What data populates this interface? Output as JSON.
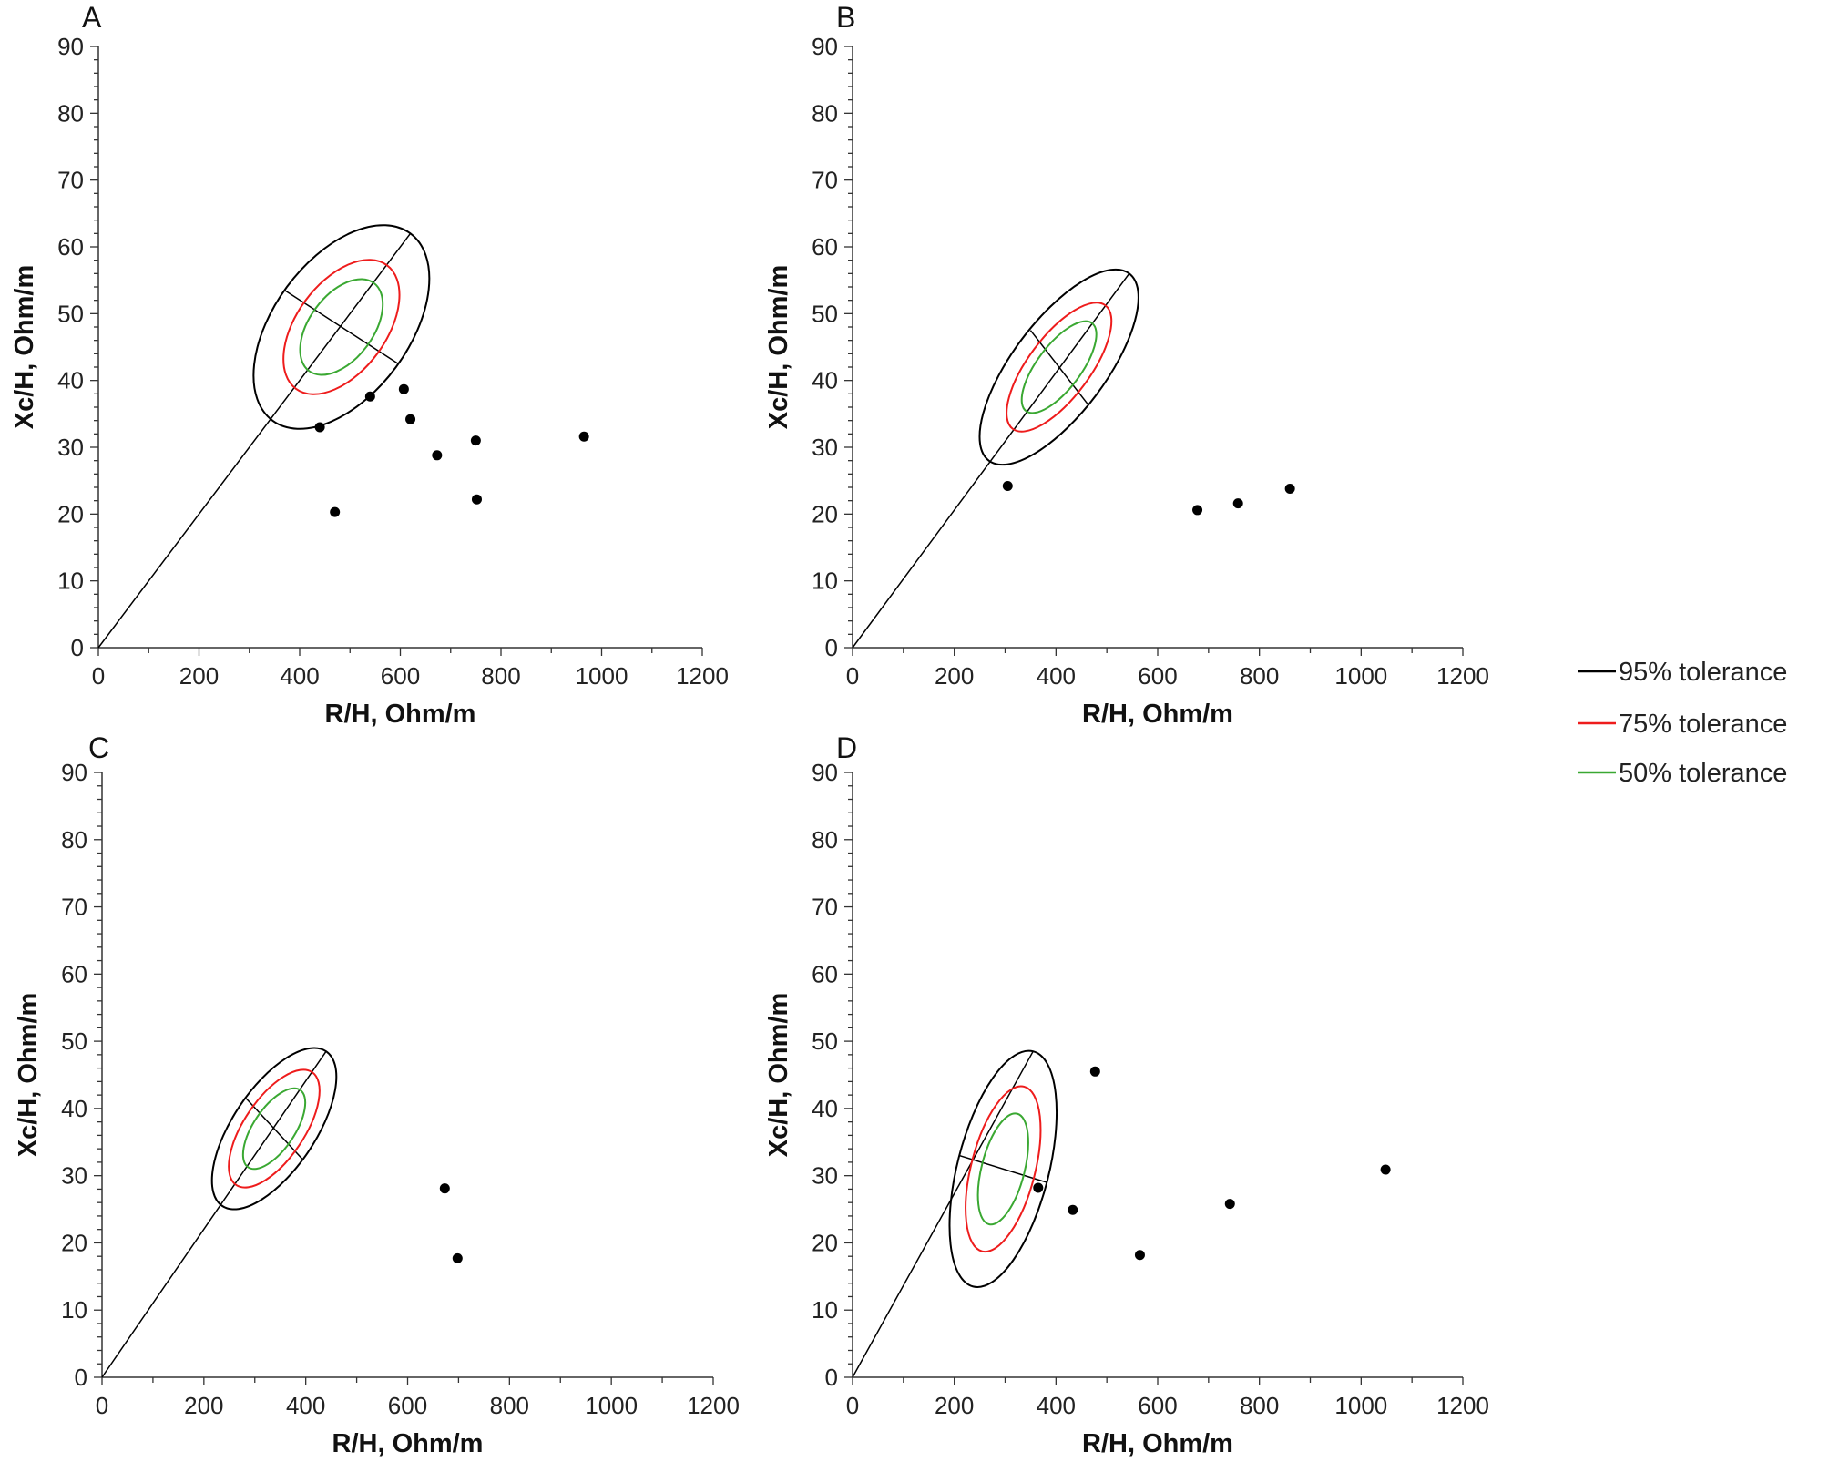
{
  "chart_data": [
    {
      "type": "scatter",
      "panel": "A",
      "xlabel": "R/H, Ohm/m",
      "ylabel": "Xc/H, Ohm/m",
      "xlim": [
        0,
        1200
      ],
      "ylim": [
        0,
        90
      ],
      "xticks": [
        "0",
        "200",
        "400",
        "600",
        "800",
        "1000",
        "1200"
      ],
      "yticks": [
        "0",
        "10",
        "20",
        "30",
        "40",
        "50",
        "60",
        "70",
        "80",
        "90"
      ],
      "points": [
        {
          "x": 440,
          "y": 33
        },
        {
          "x": 470,
          "y": 20.3
        },
        {
          "x": 540,
          "y": 37.6
        },
        {
          "x": 607,
          "y": 38.7
        },
        {
          "x": 620,
          "y": 34.2
        },
        {
          "x": 673,
          "y": 28.8
        },
        {
          "x": 750,
          "y": 31
        },
        {
          "x": 752,
          "y": 22.2
        },
        {
          "x": 965,
          "y": 31.6
        }
      ],
      "ellipse": {
        "center": [
          483,
          48
        ],
        "axis_end": [
          620,
          62
        ],
        "minor_end": [
          370,
          53.5
        ],
        "scales": {
          "95": 1.0,
          "75": 0.66,
          "50": 0.47
        }
      }
    },
    {
      "type": "scatter",
      "panel": "B",
      "xlabel": "R/H, Ohm/m",
      "ylabel": "Xc/H, Ohm/m",
      "xlim": [
        0,
        1200
      ],
      "ylim": [
        0,
        90
      ],
      "xticks": [
        "0",
        "200",
        "400",
        "600",
        "800",
        "1000",
        "1200"
      ],
      "yticks": [
        "0",
        "10",
        "20",
        "30",
        "40",
        "50",
        "60",
        "70",
        "80",
        "90"
      ],
      "points": [
        {
          "x": 305,
          "y": 24.2
        },
        {
          "x": 678,
          "y": 20.6
        },
        {
          "x": 758,
          "y": 21.6
        },
        {
          "x": 860,
          "y": 23.8
        }
      ],
      "ellipse": {
        "center": [
          406,
          42
        ],
        "axis_end": [
          544,
          56
        ],
        "minor_end": [
          350,
          47.5
        ],
        "scales": {
          "95": 1.0,
          "75": 0.66,
          "50": 0.47
        }
      }
    },
    {
      "type": "scatter",
      "panel": "C",
      "xlabel": "R/H, Ohm/m",
      "ylabel": "Xc/H, Ohm/m",
      "xlim": [
        0,
        1200
      ],
      "ylim": [
        0,
        90
      ],
      "xticks": [
        "0",
        "200",
        "400",
        "600",
        "800",
        "1000",
        "1200"
      ],
      "yticks": [
        "0",
        "10",
        "20",
        "30",
        "40",
        "50",
        "60",
        "70",
        "80",
        "90"
      ],
      "points": [
        {
          "x": 673,
          "y": 28.1
        },
        {
          "x": 698,
          "y": 17.7
        }
      ],
      "ellipse": {
        "center": [
          338,
          37
        ],
        "axis_end": [
          440,
          48.5
        ],
        "minor_end": [
          283,
          41.5
        ],
        "scales": {
          "95": 1.0,
          "75": 0.73,
          "50": 0.5
        }
      }
    },
    {
      "type": "scatter",
      "panel": "D",
      "xlabel": "R/H, Ohm/m",
      "ylabel": "Xc/H, Ohm/m",
      "xlim": [
        0,
        1200
      ],
      "ylim": [
        0,
        90
      ],
      "xticks": [
        "0",
        "200",
        "400",
        "600",
        "800",
        "1000",
        "1200"
      ],
      "yticks": [
        "0",
        "10",
        "20",
        "30",
        "40",
        "50",
        "60",
        "70",
        "80",
        "90"
      ],
      "points": [
        {
          "x": 365,
          "y": 28.2
        },
        {
          "x": 433,
          "y": 24.9
        },
        {
          "x": 477,
          "y": 45.5
        },
        {
          "x": 565,
          "y": 18.2
        },
        {
          "x": 742,
          "y": 25.8
        },
        {
          "x": 1048,
          "y": 30.9
        }
      ],
      "ellipse": {
        "center": [
          296,
          31
        ],
        "axis_end": [
          355,
          48.5
        ],
        "minor_end": [
          210,
          33
        ],
        "scales": {
          "95": 1.0,
          "75": 0.7,
          "50": 0.47
        }
      }
    }
  ],
  "legend": [
    {
      "label": "95% tolerance",
      "color": "#000000"
    },
    {
      "label": "75% tolerance",
      "color": "#ee1c1c"
    },
    {
      "label": "50% tolerance",
      "color": "#3aa832"
    }
  ]
}
